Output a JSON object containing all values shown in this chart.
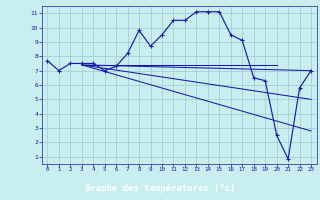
{
  "title": "Graphe des températures (°c)",
  "bg_color": "#c8eef0",
  "label_bar_color": "#2255bb",
  "label_text_color": "#ffffff",
  "line_color": "#1a1aaa",
  "grid_color": "#99cccc",
  "xlim": [
    -0.5,
    23.5
  ],
  "ylim": [
    0.5,
    11.5
  ],
  "xticks": [
    0,
    1,
    2,
    3,
    4,
    5,
    6,
    7,
    8,
    9,
    10,
    11,
    12,
    13,
    14,
    15,
    16,
    17,
    18,
    19,
    20,
    21,
    22,
    23
  ],
  "yticks": [
    1,
    2,
    3,
    4,
    5,
    6,
    7,
    8,
    9,
    10,
    11
  ],
  "main_x": [
    0,
    1,
    2,
    3,
    4,
    5,
    6,
    7,
    8,
    9,
    10,
    11,
    12,
    13,
    14,
    15,
    16,
    17,
    18,
    19,
    20,
    21,
    22,
    23
  ],
  "main_y": [
    7.7,
    7.0,
    7.5,
    7.5,
    7.5,
    7.0,
    7.3,
    8.2,
    9.8,
    8.7,
    9.5,
    10.5,
    10.5,
    11.1,
    11.1,
    11.1,
    9.5,
    9.1,
    6.5,
    6.3,
    2.5,
    0.85,
    5.8,
    7.0
  ],
  "ref_line1_x": [
    3,
    20
  ],
  "ref_line1_y": [
    7.4,
    7.4
  ],
  "ref_line2_x": [
    3,
    23
  ],
  "ref_line2_y": [
    7.4,
    7.0
  ],
  "ref_line3_x": [
    3,
    23
  ],
  "ref_line3_y": [
    7.4,
    5.0
  ],
  "ref_line4_x": [
    3,
    23
  ],
  "ref_line4_y": [
    7.4,
    2.8
  ]
}
